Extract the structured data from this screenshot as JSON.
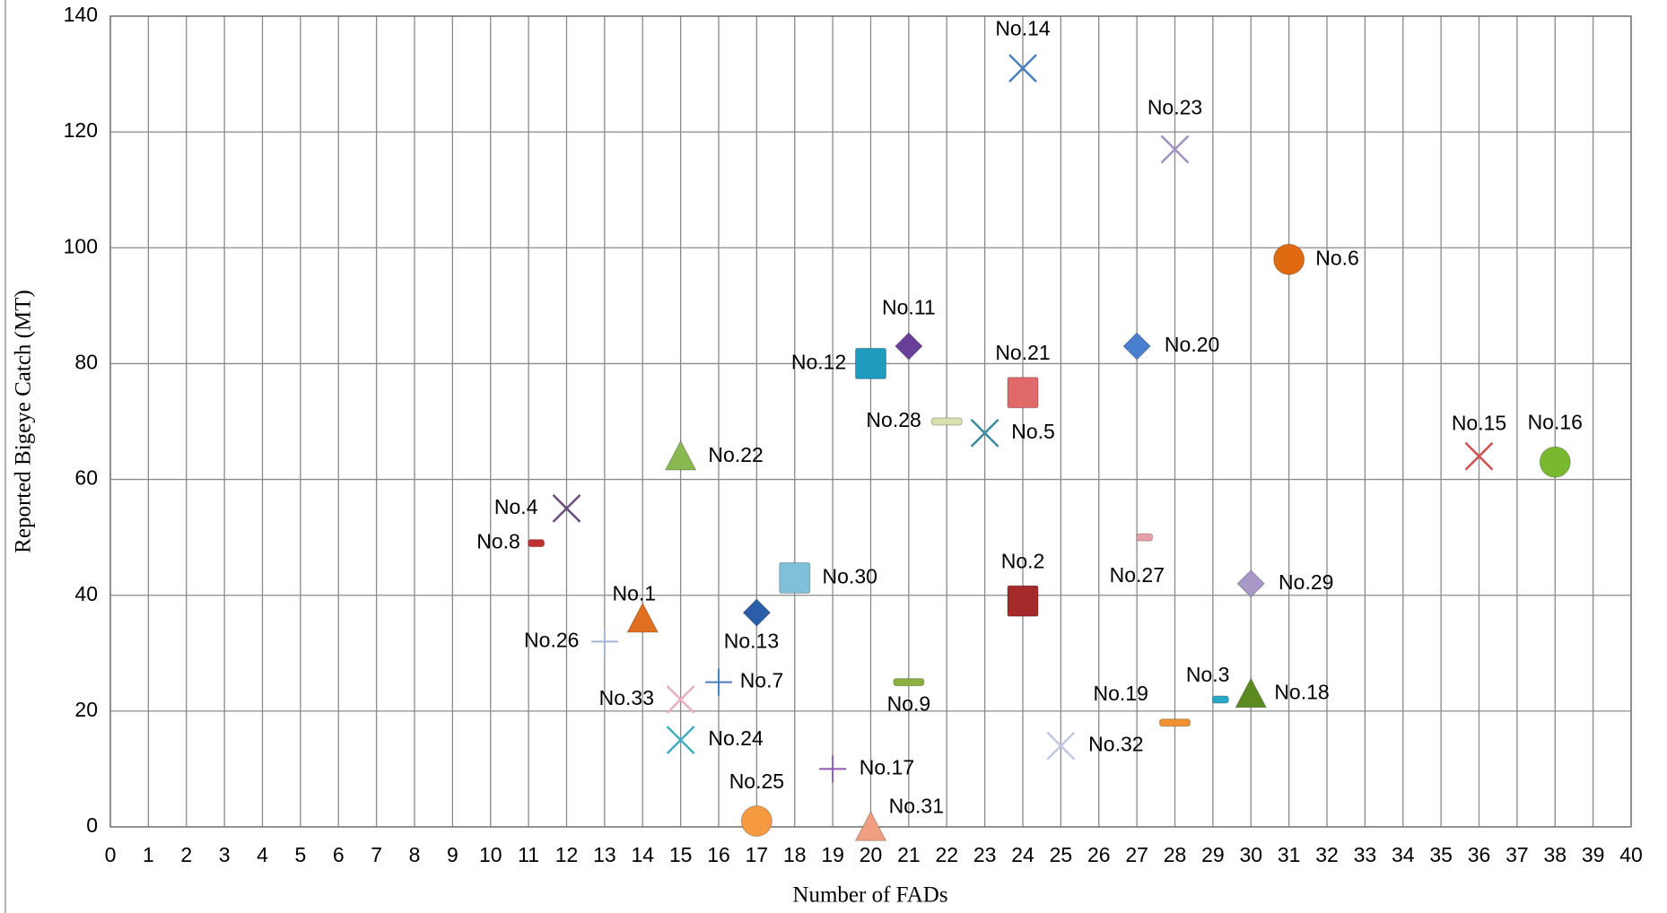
{
  "chart_data": {
    "type": "scatter",
    "xlabel": "Number of FADs",
    "ylabel": "Reported Bigeye Catch (MT)",
    "xlim": [
      0,
      40
    ],
    "ylim": [
      0,
      140
    ],
    "xticks": [
      0,
      1,
      2,
      3,
      4,
      5,
      6,
      7,
      8,
      9,
      10,
      11,
      12,
      13,
      14,
      15,
      16,
      17,
      18,
      19,
      20,
      21,
      22,
      23,
      24,
      25,
      26,
      27,
      28,
      29,
      30,
      31,
      32,
      33,
      34,
      35,
      36,
      37,
      38,
      39,
      40
    ],
    "yticks": [
      0,
      20,
      40,
      60,
      80,
      100,
      120,
      140
    ],
    "grid": true,
    "series": [
      {
        "name": "No.1",
        "color": "#e07020",
        "marker": "triangle",
        "x": [
          14
        ],
        "values": [
          36
        ]
      },
      {
        "name": "No.2",
        "color": "#a52a2a",
        "marker": "square",
        "x": [
          24
        ],
        "values": [
          39
        ]
      },
      {
        "name": "No.3",
        "color": "#2aa8c8",
        "marker": "small-bar",
        "x": [
          29.2
        ],
        "values": [
          22
        ]
      },
      {
        "name": "No.4",
        "color": "#6a4c7a",
        "marker": "x",
        "x": [
          12
        ],
        "values": [
          55
        ]
      },
      {
        "name": "No.5",
        "color": "#3a8aa0",
        "marker": "x",
        "x": [
          23
        ],
        "values": [
          68
        ]
      },
      {
        "name": "No.6",
        "color": "#e06a10",
        "marker": "circle",
        "x": [
          31
        ],
        "values": [
          98
        ]
      },
      {
        "name": "No.7",
        "color": "#4a7ec0",
        "marker": "plus",
        "x": [
          16
        ],
        "values": [
          25
        ]
      },
      {
        "name": "No.8",
        "color": "#c03030",
        "marker": "small-bar",
        "x": [
          11.2
        ],
        "values": [
          49
        ]
      },
      {
        "name": "No.9",
        "color": "#8cb040",
        "marker": "bar",
        "x": [
          21
        ],
        "values": [
          25
        ]
      },
      {
        "name": "No.11",
        "color": "#6a3f9a",
        "marker": "diamond",
        "x": [
          21
        ],
        "values": [
          83
        ]
      },
      {
        "name": "No.12",
        "color": "#1f9bbf",
        "marker": "square",
        "x": [
          20
        ],
        "values": [
          80
        ]
      },
      {
        "name": "No.13",
        "color": "#2a5ea8",
        "marker": "diamond",
        "x": [
          17
        ],
        "values": [
          37
        ]
      },
      {
        "name": "No.14",
        "color": "#4a80c0",
        "marker": "x",
        "x": [
          24
        ],
        "values": [
          131
        ]
      },
      {
        "name": "No.15",
        "color": "#d05050",
        "marker": "x",
        "x": [
          36
        ],
        "values": [
          64
        ]
      },
      {
        "name": "No.16",
        "color": "#7ab830",
        "marker": "circle",
        "x": [
          38
        ],
        "values": [
          63
        ]
      },
      {
        "name": "No.17",
        "color": "#8a5ab0",
        "marker": "plus",
        "x": [
          19
        ],
        "values": [
          10
        ]
      },
      {
        "name": "No.18",
        "color": "#5a8a20",
        "marker": "triangle",
        "x": [
          30
        ],
        "values": [
          23
        ]
      },
      {
        "name": "No.19",
        "color": "#f09030",
        "marker": "bar",
        "x": [
          28
        ],
        "values": [
          18
        ]
      },
      {
        "name": "No.20",
        "color": "#4a7fd0",
        "marker": "diamond",
        "x": [
          27
        ],
        "values": [
          83
        ]
      },
      {
        "name": "No.21",
        "color": "#e06a6a",
        "marker": "square",
        "x": [
          24
        ],
        "values": [
          75
        ]
      },
      {
        "name": "No.22",
        "color": "#8ab850",
        "marker": "triangle",
        "x": [
          15
        ],
        "values": [
          64
        ]
      },
      {
        "name": "No.23",
        "color": "#a090c0",
        "marker": "x",
        "x": [
          28
        ],
        "values": [
          117
        ]
      },
      {
        "name": "No.24",
        "color": "#40b0c0",
        "marker": "x",
        "x": [
          15
        ],
        "values": [
          15
        ]
      },
      {
        "name": "No.25",
        "color": "#f59a40",
        "marker": "circle",
        "x": [
          17
        ],
        "values": [
          1
        ]
      },
      {
        "name": "No.26",
        "color": "#a8b8d8",
        "marker": "plus",
        "x": [
          13
        ],
        "values": [
          32
        ]
      },
      {
        "name": "No.27",
        "color": "#e8a0a8",
        "marker": "small-bar",
        "x": [
          27.2
        ],
        "values": [
          50
        ]
      },
      {
        "name": "No.28",
        "color": "#d8e0b0",
        "marker": "bar",
        "x": [
          22
        ],
        "values": [
          70
        ]
      },
      {
        "name": "No.29",
        "color": "#a898c8",
        "marker": "diamond",
        "x": [
          30
        ],
        "values": [
          42
        ]
      },
      {
        "name": "No.30",
        "color": "#80c0d8",
        "marker": "square",
        "x": [
          18
        ],
        "values": [
          43
        ]
      },
      {
        "name": "No.31",
        "color": "#f0a080",
        "marker": "triangle",
        "x": [
          20
        ],
        "values": [
          0
        ]
      },
      {
        "name": "No.32",
        "color": "#c0c8e0",
        "marker": "x",
        "x": [
          25
        ],
        "values": [
          14
        ]
      },
      {
        "name": "No.33",
        "color": "#e8b0c0",
        "marker": "x",
        "x": [
          15
        ],
        "values": [
          22
        ]
      }
    ]
  }
}
